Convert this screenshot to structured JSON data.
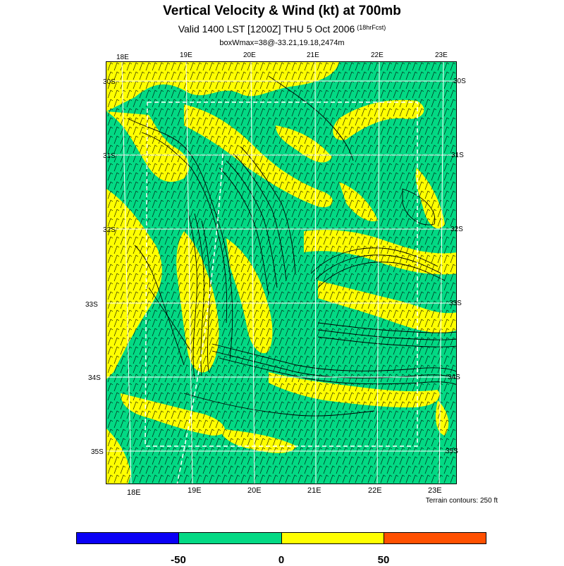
{
  "title": "Vertical Velocity & Wind (kt) at 700mb",
  "subtitle_main": "Valid 1400 LST [1200Z] THU 5 Oct 2006",
  "subtitle_small": "(18hrFcst)",
  "box_info": "boxWmax=38@-33.21,19.18,2474m",
  "terrain_note": "Terrain contours: 250 ft",
  "top_lon_labels": [
    "18E",
    "19E",
    "20E",
    "21E",
    "22E",
    "23E"
  ],
  "bottom_lon_labels": [
    "18E",
    "19E",
    "20E",
    "21E",
    "22E",
    "23E"
  ],
  "left_lat_labels": [
    "30S",
    "31S",
    "32S",
    "33S",
    "34S",
    "35S"
  ],
  "right_lat_labels": [
    "30S",
    "31S",
    "32S",
    "33S",
    "34S",
    "35S"
  ],
  "colorbar": {
    "colors": [
      "#0a00f5",
      "#03d984",
      "#ffff00",
      "#ff5000"
    ],
    "labels": [
      "-50",
      "0",
      "50"
    ]
  },
  "colors": {
    "background": "#03d984",
    "updraft": "#ffff00"
  }
}
